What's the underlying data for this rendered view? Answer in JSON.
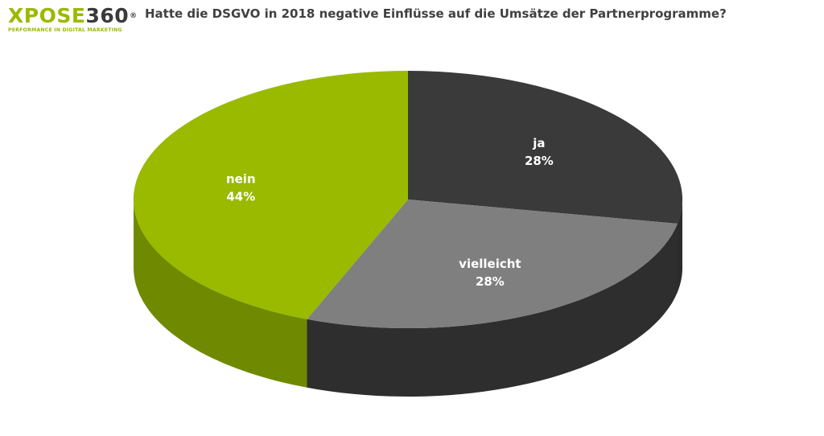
{
  "logo": {
    "brand": "XPOSE",
    "number": "360",
    "registered": "®",
    "tagline": "PERFORMANCE IN DIGITAL MARKETING"
  },
  "colors": {
    "ja": "#3a3a3a",
    "vielleicht": "#7f7f7f",
    "nein": "#9aba00"
  },
  "chart_data": {
    "type": "pie",
    "style": "3d",
    "title": "Hatte die DSGVO in 2018 negative Einflüsse auf die Umsätze der Partnerprogramme?",
    "slices": [
      {
        "label": "ja",
        "value": 28,
        "display": "28%",
        "color": "#3a3a3a",
        "side_color": "#2b2b2b"
      },
      {
        "label": "vielleicht",
        "value": 28,
        "display": "28%",
        "color": "#7f7f7f",
        "side_color": "#2e2e2e"
      },
      {
        "label": "nein",
        "value": 44,
        "display": "44%",
        "color": "#9aba00",
        "side_color": "#6f8a00"
      }
    ],
    "legend": "none",
    "data_labels": "inside"
  }
}
